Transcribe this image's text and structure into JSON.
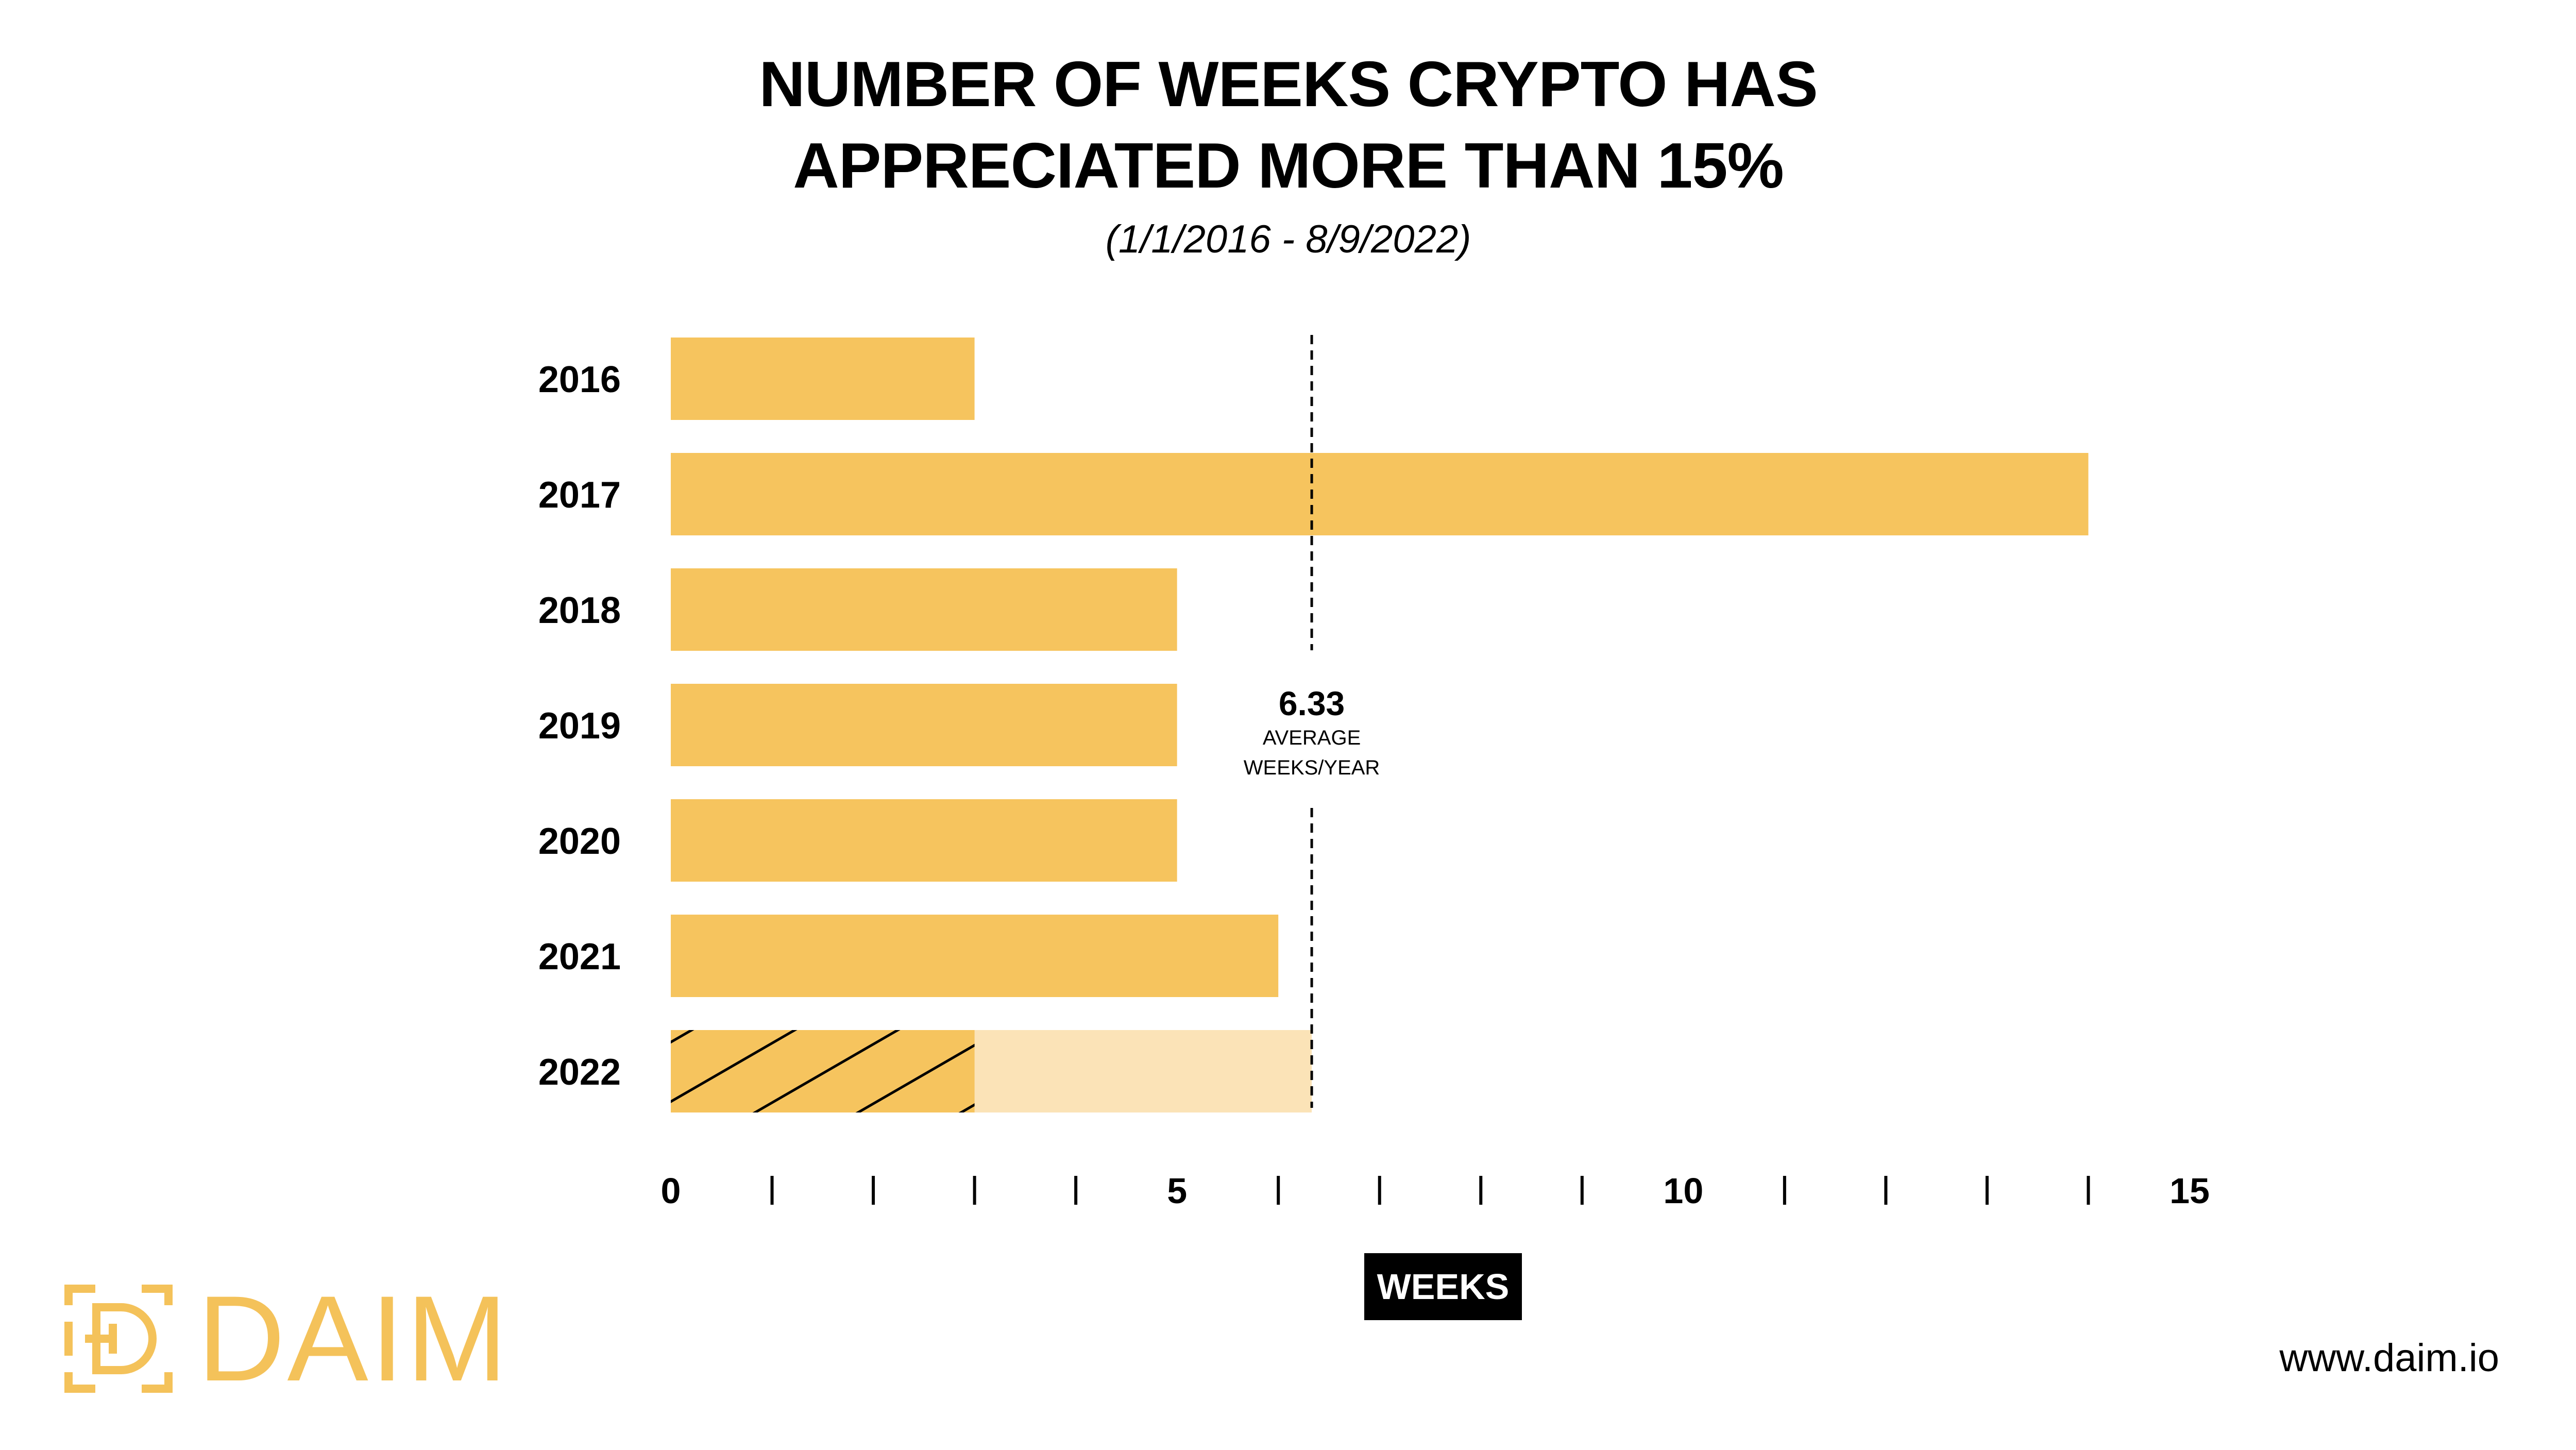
{
  "colors": {
    "bar": "#F6C45E",
    "bar_light": "#FBE3B7",
    "brand": "#F4C25A",
    "text": "#000000",
    "background": "#FFFFFF"
  },
  "chart_data": {
    "type": "bar",
    "orientation": "horizontal",
    "title_lines": [
      "NUMBER OF WEEKS CRYPTO HAS",
      "APPRECIATED MORE THAN 15%"
    ],
    "subtitle": "(1/1/2016 - 8/9/2022)",
    "xlabel": "WEEKS",
    "ylabel": "",
    "categories": [
      "2016",
      "2017",
      "2018",
      "2019",
      "2020",
      "2021",
      "2022"
    ],
    "values": [
      3,
      14,
      5,
      5,
      5,
      6,
      3
    ],
    "partial_2022": {
      "category": "2022",
      "value": 3,
      "projected_to": 6.33,
      "pattern": "hatched"
    },
    "xlim": [
      0,
      15
    ],
    "ticks": [
      0,
      5,
      10,
      15
    ],
    "minor_tick_step": 1,
    "grid": false,
    "reference_line": {
      "value": 6.33,
      "label_value": "6.33",
      "label_lines": [
        "AVERAGE",
        "WEEKS/YEAR"
      ],
      "style": "dashed"
    }
  },
  "brand": {
    "name": "DAIM",
    "website": "www.daim.io",
    "logo_icon": "daim-logo-icon"
  }
}
